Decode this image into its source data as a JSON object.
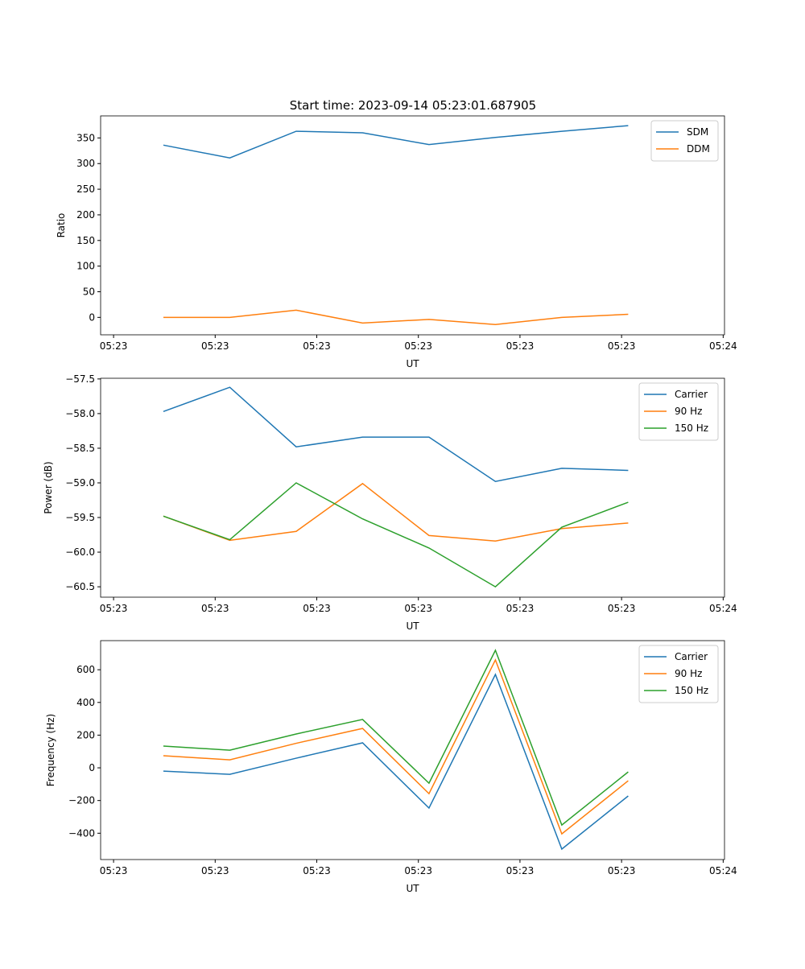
{
  "title": "Start time: 2023-09-14 05:23:01.687905",
  "chart_data": [
    {
      "type": "line",
      "xlabel": "UT",
      "ylabel": "Ratio",
      "x": [
        0,
        1,
        2,
        3,
        4,
        5,
        6,
        7
      ],
      "xlim": [
        -0.945,
        8.45
      ],
      "xticks": [
        -0.75,
        0.78,
        2.31,
        3.84,
        5.37,
        6.9,
        8.43
      ],
      "xtick_labels": [
        "05:23",
        "05:23",
        "05:23",
        "05:23",
        "05:23",
        "05:23",
        "05:24"
      ],
      "ylim": [
        -34,
        393
      ],
      "yticks": [
        0,
        50,
        100,
        150,
        200,
        250,
        300,
        350
      ],
      "legend": "top-right",
      "series": [
        {
          "name": "SDM",
          "color": "#1f77b4",
          "values": [
            336,
            311,
            363,
            360,
            337,
            351,
            363,
            374
          ]
        },
        {
          "name": "DDM",
          "color": "#ff7f0e",
          "values": [
            0,
            0,
            14,
            -11,
            -4,
            -14,
            0,
            6
          ]
        }
      ]
    },
    {
      "type": "line",
      "xlabel": "UT",
      "ylabel": "Power (dB)",
      "x": [
        0,
        1,
        2,
        3,
        4,
        5,
        6,
        7
      ],
      "xlim": [
        -0.945,
        8.45
      ],
      "xticks": [
        -0.75,
        0.78,
        2.31,
        3.84,
        5.37,
        6.9,
        8.43
      ],
      "xtick_labels": [
        "05:23",
        "05:23",
        "05:23",
        "05:23",
        "05:23",
        "05:23",
        "05:24"
      ],
      "ylim": [
        -60.65,
        -57.49
      ],
      "yticks": [
        -60.5,
        -60.0,
        -59.5,
        -59.0,
        -58.5,
        -58.0,
        -57.5
      ],
      "legend": "top-right",
      "series": [
        {
          "name": "Carrier",
          "color": "#1f77b4",
          "values": [
            -57.97,
            -57.62,
            -58.48,
            -58.34,
            -58.34,
            -58.98,
            -58.79,
            -58.82
          ]
        },
        {
          "name": "90 Hz",
          "color": "#ff7f0e",
          "values": [
            -59.48,
            -59.83,
            -59.7,
            -59.01,
            -59.76,
            -59.84,
            -59.66,
            -59.58
          ]
        },
        {
          "name": "150 Hz",
          "color": "#2ca02c",
          "values": [
            -59.48,
            -59.82,
            -59.0,
            -59.52,
            -59.94,
            -60.5,
            -59.64,
            -59.28
          ]
        }
      ]
    },
    {
      "type": "line",
      "xlabel": "UT",
      "ylabel": "Frequency (Hz)",
      "x": [
        0,
        1,
        2,
        3,
        4,
        5,
        6,
        7
      ],
      "xlim": [
        -0.945,
        8.45
      ],
      "xticks": [
        -0.75,
        0.78,
        2.31,
        3.84,
        5.37,
        6.9,
        8.43
      ],
      "xtick_labels": [
        "05:23",
        "05:23",
        "05:23",
        "05:23",
        "05:23",
        "05:23",
        "05:24"
      ],
      "ylim": [
        -561,
        778
      ],
      "yticks": [
        -400,
        -200,
        0,
        200,
        400,
        600
      ],
      "legend": "top-right",
      "series": [
        {
          "name": "Carrier",
          "color": "#1f77b4",
          "values": [
            -20,
            -40,
            59,
            153,
            -246,
            571,
            -497,
            -172
          ]
        },
        {
          "name": "90 Hz",
          "color": "#ff7f0e",
          "values": [
            74,
            49,
            150,
            241,
            -158,
            660,
            -404,
            -79
          ]
        },
        {
          "name": "150 Hz",
          "color": "#2ca02c",
          "values": [
            133,
            108,
            207,
            296,
            -94,
            719,
            -350,
            -25
          ]
        }
      ]
    }
  ]
}
